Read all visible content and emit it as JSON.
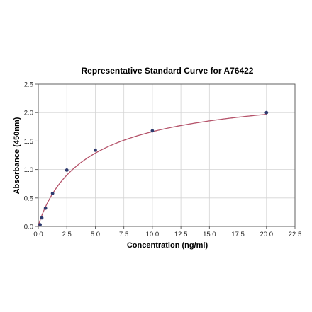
{
  "chart_data": {
    "type": "scatter",
    "title": "Representative Standard Curve for A76422",
    "xlabel": "Concentration (ng/ml)",
    "ylabel": "Absorbance (450nm)",
    "xlim": [
      0,
      22.5
    ],
    "ylim": [
      0,
      2.5
    ],
    "x_ticks": [
      0,
      2.5,
      5,
      7.5,
      10,
      12.5,
      15,
      17.5,
      20,
      22.5
    ],
    "y_ticks": [
      0,
      0.5,
      1,
      1.5,
      2,
      2.5
    ],
    "x_tick_labels": [
      "0.0",
      "2.5",
      "5.0",
      "7.5",
      "10.0",
      "12.5",
      "15.0",
      "17.5",
      "20.0",
      "22.5"
    ],
    "y_tick_labels": [
      "0.0",
      "0.5",
      "1.0",
      "1.5",
      "2.0",
      "2.5"
    ],
    "grid": true,
    "series": [
      {
        "points": [
          {
            "x": 0.16,
            "y": 0.03
          },
          {
            "x": 0.31,
            "y": 0.15
          },
          {
            "x": 0.63,
            "y": 0.32
          },
          {
            "x": 1.25,
            "y": 0.58
          },
          {
            "x": 2.5,
            "y": 0.99
          },
          {
            "x": 5.0,
            "y": 1.34
          },
          {
            "x": 10.0,
            "y": 1.68
          },
          {
            "x": 20.0,
            "y": 2.0
          }
        ],
        "marker_color": "#2e3a6e",
        "fit": {
          "model": "4PL",
          "a": 0.0,
          "b": 0.92,
          "c": 4.6,
          "d": 2.48
        },
        "fit_color": "#b5536a"
      }
    ]
  }
}
